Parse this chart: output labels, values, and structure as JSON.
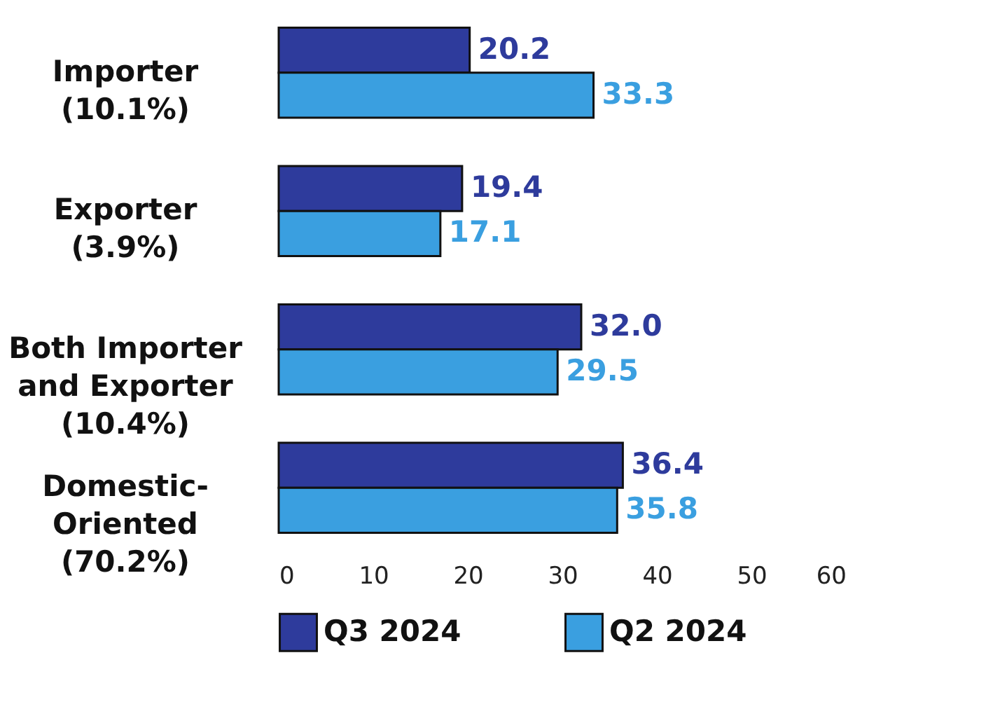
{
  "chart_data": {
    "type": "bar",
    "orientation": "horizontal",
    "categories": [
      "Importer\n(10.1%)",
      "Exporter\n(3.9%)",
      "Both Importer\nand Exporter\n(10.4%)",
      "Domestic-\nOriented\n(70.2%)"
    ],
    "series": [
      {
        "name": "Q3 2024",
        "color": "#2e3b9c",
        "values": [
          20.2,
          19.4,
          32.0,
          36.4
        ],
        "value_labels": [
          "20.2",
          "19.4",
          "32.0",
          "36.4"
        ]
      },
      {
        "name": "Q2 2024",
        "color": "#3a9fe0",
        "values": [
          33.3,
          17.1,
          29.5,
          35.8
        ],
        "value_labels": [
          "33.3",
          "17.1",
          "29.5",
          "35.8"
        ]
      }
    ],
    "xlim": [
      0,
      60
    ],
    "xticks": [
      0,
      10,
      20,
      30,
      40,
      50,
      60
    ],
    "legend": "bottom",
    "grid": false
  }
}
